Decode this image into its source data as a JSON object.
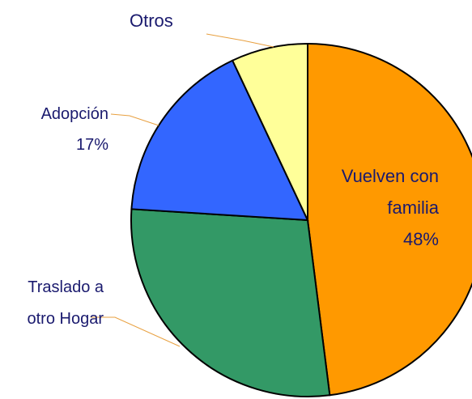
{
  "chart_data": {
    "type": "pie",
    "categories": [
      "Vuelven con familia",
      "Traslado a otro Hogar",
      "Adopción",
      "Otros"
    ],
    "values": [
      48,
      28,
      17,
      7
    ],
    "value_labels": [
      "48%",
      null,
      "17%",
      null
    ],
    "colors": [
      "#ff9900",
      "#339966",
      "#3366ff",
      "#ffff99"
    ]
  }
}
